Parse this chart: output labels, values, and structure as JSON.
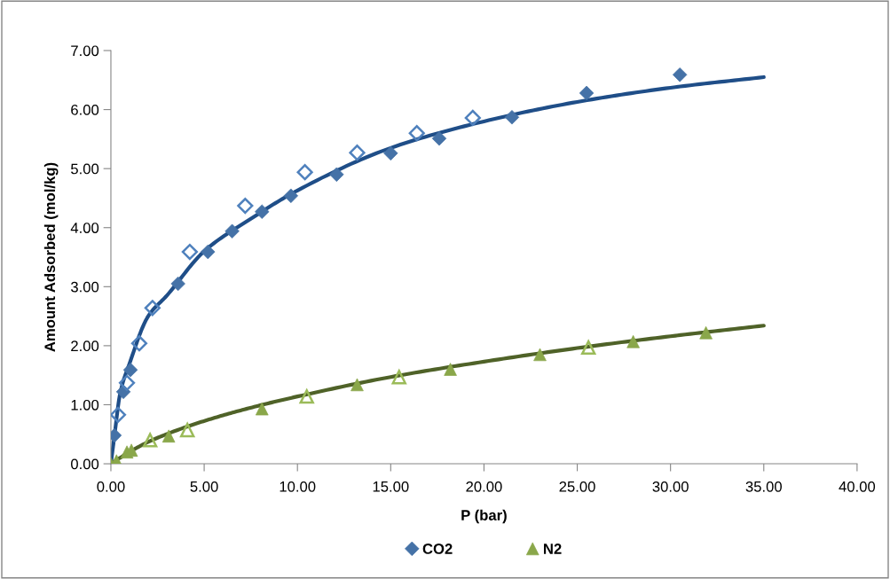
{
  "chart_data": {
    "type": "scatter",
    "xlabel": "P (bar)",
    "ylabel": "Amount Adsorbed (mol/kg)",
    "xlim": [
      0,
      40
    ],
    "ylim": [
      0,
      7
    ],
    "xticks": [
      {
        "value": 0,
        "label": "0.00"
      },
      {
        "value": 5,
        "label": "5.00"
      },
      {
        "value": 10,
        "label": "10.00"
      },
      {
        "value": 15,
        "label": "15.00"
      },
      {
        "value": 20,
        "label": "20.00"
      },
      {
        "value": 25,
        "label": "25.00"
      },
      {
        "value": 30,
        "label": "30.00"
      },
      {
        "value": 35,
        "label": "35.00"
      },
      {
        "value": 40,
        "label": "40.00"
      }
    ],
    "yticks": [
      {
        "value": 0,
        "label": "0.00"
      },
      {
        "value": 1,
        "label": "1.00"
      },
      {
        "value": 2,
        "label": "2.00"
      },
      {
        "value": 3,
        "label": "3.00"
      },
      {
        "value": 4,
        "label": "4.00"
      },
      {
        "value": 5,
        "label": "5.00"
      },
      {
        "value": 6,
        "label": "6.00"
      },
      {
        "value": 7,
        "label": "7.00"
      }
    ],
    "grid": false,
    "legend": "bottom",
    "series": [
      {
        "type": "line",
        "color": "#1f4e88",
        "marker": "none",
        "line_style": "solid",
        "x": [
          0,
          0.2,
          0.5,
          1,
          2,
          3,
          5,
          7.5,
          10,
          15,
          20,
          25,
          30,
          35
        ],
        "values": [
          0,
          0.5,
          1.2,
          1.7,
          2.5,
          2.85,
          3.6,
          4.15,
          4.63,
          5.35,
          5.8,
          6.13,
          6.37,
          6.55
        ]
      },
      {
        "type": "line",
        "color": "#4f6228",
        "marker": "none",
        "line_style": "solid",
        "x": [
          0,
          1,
          2,
          4,
          6,
          8,
          10,
          15,
          20,
          25,
          30,
          35
        ],
        "values": [
          0,
          0.2,
          0.37,
          0.62,
          0.82,
          0.99,
          1.14,
          1.47,
          1.73,
          1.96,
          2.16,
          2.34
        ]
      },
      {
        "name": "CO2",
        "color": "#4572a7",
        "marker": "diamond",
        "x": [
          0.19,
          0.67,
          1.05,
          3.6,
          5.2,
          6.5,
          8.1,
          9.65,
          12.1,
          15.0,
          17.6,
          21.5,
          25.5,
          30.5
        ],
        "values": [
          0.48,
          1.22,
          1.59,
          3.05,
          3.59,
          3.94,
          4.27,
          4.54,
          4.9,
          5.26,
          5.51,
          5.87,
          6.28,
          6.59
        ]
      },
      {
        "color": "#4f81bd",
        "marker": "diamond",
        "x": [
          0.38,
          0.86,
          1.52,
          2.23,
          4.23,
          7.2,
          10.4,
          13.2,
          16.4,
          19.4
        ],
        "values": [
          0.83,
          1.37,
          2.04,
          2.64,
          3.59,
          4.37,
          4.94,
          5.27,
          5.6,
          5.86
        ]
      },
      {
        "name": "N2",
        "color": "#8aa74a",
        "marker": "triangle",
        "x": [
          0,
          0.3,
          0.86,
          1.1,
          3.1,
          8.1,
          13.2,
          18.2,
          23.0,
          28.0,
          31.9
        ],
        "values": [
          0,
          0.05,
          0.2,
          0.23,
          0.47,
          0.93,
          1.34,
          1.6,
          1.85,
          2.07,
          2.22
        ]
      },
      {
        "color": "#9bbb59",
        "marker": "triangle",
        "x": [
          2.1,
          4.1,
          10.5,
          15.45,
          25.6
        ],
        "values": [
          0.4,
          0.57,
          1.14,
          1.47,
          1.97
        ]
      }
    ]
  }
}
